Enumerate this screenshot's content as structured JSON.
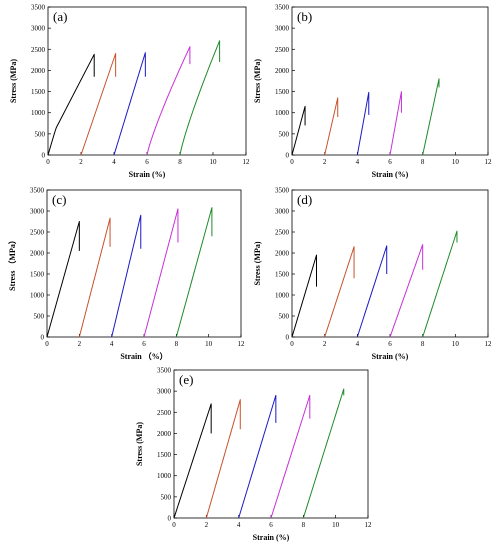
{
  "figure": {
    "panels": [
      {
        "label": "(a)",
        "xlabel": "Strain (%)",
        "ylabel": "Stress (MPa)"
      },
      {
        "label": "(b)",
        "xlabel": "Strain (%)",
        "ylabel": "Stress (MPa)"
      },
      {
        "label": "(c)",
        "xlabel": "Strain （%）",
        "ylabel": "Stress （MPa）"
      },
      {
        "label": "(d)",
        "xlabel": "Strain (%)",
        "ylabel": "Stress (MPa)"
      },
      {
        "label": "(e)",
        "xlabel": "Strain (%)",
        "ylabel": "Stress (MPa)"
      }
    ]
  },
  "colors": {
    "series": [
      "#000000",
      "#c8522a",
      "#1a1ac8",
      "#c830d8",
      "#1e8a2a"
    ]
  },
  "chart_data": [
    {
      "type": "line",
      "title": "(a)",
      "xlabel": "Strain (%)",
      "ylabel": "Stress (MPa)",
      "xlim": [
        0,
        12
      ],
      "ylim": [
        0,
        3500
      ],
      "xticks": [
        0,
        2,
        4,
        6,
        8,
        10,
        12
      ],
      "yticks": [
        0,
        500,
        1000,
        1500,
        2000,
        2500,
        3000,
        3500
      ],
      "series": [
        {
          "start": 0.0,
          "end": 2.8,
          "peak": 2380,
          "drop": 1850,
          "shape": "knee"
        },
        {
          "start": 2.0,
          "end": 4.1,
          "peak": 2400,
          "drop": 1850,
          "shape": "linear"
        },
        {
          "start": 4.0,
          "end": 5.9,
          "peak": 2420,
          "drop": 1850,
          "shape": "linear"
        },
        {
          "start": 6.0,
          "end": 8.6,
          "peak": 2560,
          "drop": 2150,
          "shape": "convex"
        },
        {
          "start": 8.0,
          "end": 10.4,
          "peak": 2700,
          "drop": 2200,
          "shape": "convex"
        }
      ]
    },
    {
      "type": "line",
      "title": "(b)",
      "xlabel": "Strain (%)",
      "ylabel": "Stress (MPa)",
      "xlim": [
        0,
        12
      ],
      "ylim": [
        0,
        3500
      ],
      "xticks": [
        0,
        2,
        4,
        6,
        8,
        10,
        12
      ],
      "yticks": [
        0,
        500,
        1000,
        1500,
        2000,
        2500,
        3000,
        3500
      ],
      "series": [
        {
          "start": 0.0,
          "end": 0.8,
          "peak": 1150,
          "drop": 700,
          "shape": "linear"
        },
        {
          "start": 2.0,
          "end": 2.8,
          "peak": 1350,
          "drop": 900,
          "shape": "linear"
        },
        {
          "start": 4.0,
          "end": 4.7,
          "peak": 1480,
          "drop": 950,
          "shape": "linear"
        },
        {
          "start": 6.0,
          "end": 6.7,
          "peak": 1500,
          "drop": 1000,
          "shape": "linear"
        },
        {
          "start": 8.0,
          "end": 9.0,
          "peak": 1800,
          "drop": 1600,
          "shape": "linear"
        }
      ]
    },
    {
      "type": "line",
      "title": "(c)",
      "xlabel": "Strain （%）",
      "ylabel": "Stress （MPa）",
      "xlim": [
        0,
        12
      ],
      "ylim": [
        0,
        3500
      ],
      "xticks": [
        0,
        2,
        4,
        6,
        8,
        10,
        12
      ],
      "yticks": [
        0,
        500,
        1000,
        1500,
        2000,
        2500,
        3000,
        3500
      ],
      "series": [
        {
          "start": 0.0,
          "end": 2.0,
          "peak": 2750,
          "drop": 2050,
          "shape": "linear"
        },
        {
          "start": 2.0,
          "end": 3.9,
          "peak": 2830,
          "drop": 2150,
          "shape": "linear"
        },
        {
          "start": 4.0,
          "end": 5.8,
          "peak": 2900,
          "drop": 2100,
          "shape": "linear"
        },
        {
          "start": 6.0,
          "end": 8.1,
          "peak": 3050,
          "drop": 2250,
          "shape": "linear"
        },
        {
          "start": 8.0,
          "end": 10.2,
          "peak": 3080,
          "drop": 2400,
          "shape": "linear"
        }
      ]
    },
    {
      "type": "line",
      "title": "(d)",
      "xlabel": "Strain (%)",
      "ylabel": "Stress (MPa)",
      "xlim": [
        0,
        12
      ],
      "ylim": [
        0,
        3500
      ],
      "xticks": [
        0,
        2,
        4,
        6,
        8,
        10,
        12
      ],
      "yticks": [
        0,
        500,
        1000,
        1500,
        2000,
        2500,
        3000,
        3500
      ],
      "series": [
        {
          "start": 0.0,
          "end": 1.5,
          "peak": 1950,
          "drop": 1200,
          "shape": "linear"
        },
        {
          "start": 2.0,
          "end": 3.8,
          "peak": 2150,
          "drop": 1400,
          "shape": "linear"
        },
        {
          "start": 4.0,
          "end": 5.8,
          "peak": 2170,
          "drop": 1500,
          "shape": "linear"
        },
        {
          "start": 6.0,
          "end": 8.0,
          "peak": 2200,
          "drop": 1600,
          "shape": "linear"
        },
        {
          "start": 8.0,
          "end": 10.1,
          "peak": 2520,
          "drop": 2250,
          "shape": "linear"
        }
      ]
    },
    {
      "type": "line",
      "title": "(e)",
      "xlabel": "Strain (%)",
      "ylabel": "Stress (MPa)",
      "xlim": [
        0,
        12
      ],
      "ylim": [
        0,
        3500
      ],
      "xticks": [
        0,
        2,
        4,
        6,
        8,
        10,
        12
      ],
      "yticks": [
        0,
        500,
        1000,
        1500,
        2000,
        2500,
        3000,
        3500
      ],
      "series": [
        {
          "start": 0.0,
          "end": 2.3,
          "peak": 2700,
          "drop": 2000,
          "shape": "linear"
        },
        {
          "start": 2.0,
          "end": 4.1,
          "peak": 2800,
          "drop": 2100,
          "shape": "linear"
        },
        {
          "start": 4.0,
          "end": 6.3,
          "peak": 2900,
          "drop": 2250,
          "shape": "linear"
        },
        {
          "start": 6.0,
          "end": 8.4,
          "peak": 2900,
          "drop": 2350,
          "shape": "linear"
        },
        {
          "start": 8.0,
          "end": 10.5,
          "peak": 3050,
          "drop": 2900,
          "shape": "linear"
        }
      ]
    }
  ]
}
